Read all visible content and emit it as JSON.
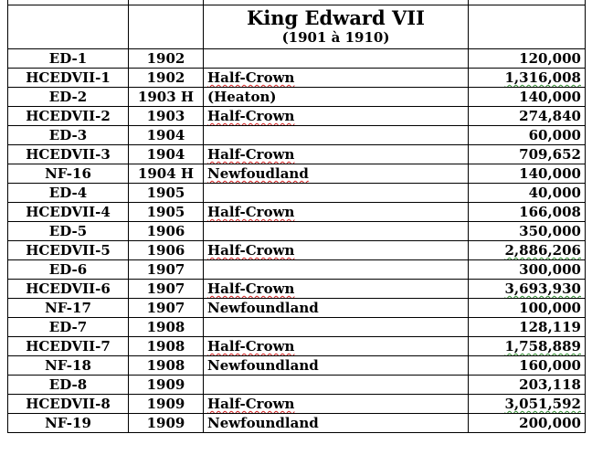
{
  "header": {
    "title": "King Edward VII",
    "subtitle": "(1901 à 1910)"
  },
  "rows": [
    {
      "code": "ED-1",
      "year": "1902",
      "desc": "",
      "qty": "120,000",
      "desc_mark": "",
      "qty_mark": ""
    },
    {
      "code": "HCEDVII-1",
      "year": "1902",
      "desc": "Half-Crown",
      "qty": "1,316,008",
      "desc_mark": "red",
      "qty_mark": "green"
    },
    {
      "code": "ED-2",
      "year": "1903 H",
      "desc": "(Heaton)",
      "qty": "140,000",
      "desc_mark": "",
      "qty_mark": ""
    },
    {
      "code": "HCEDVII-2",
      "year": "1903",
      "desc": "Half-Crown",
      "qty": "274,840",
      "desc_mark": "red",
      "qty_mark": ""
    },
    {
      "code": "ED-3",
      "year": "1904",
      "desc": "",
      "qty": "60,000",
      "desc_mark": "",
      "qty_mark": ""
    },
    {
      "code": "HCEDVII-3",
      "year": "1904",
      "desc": "Half-Crown",
      "qty": "709,652",
      "desc_mark": "red",
      "qty_mark": ""
    },
    {
      "code": "NF-16",
      "year": "1904 H",
      "desc": "Newfoudland",
      "qty": "140,000",
      "desc_mark": "red",
      "qty_mark": ""
    },
    {
      "code": "ED-4",
      "year": "1905",
      "desc": "",
      "qty": "40,000",
      "desc_mark": "",
      "qty_mark": ""
    },
    {
      "code": "HCEDVII-4",
      "year": "1905",
      "desc": "Half-Crown",
      "qty": "166,008",
      "desc_mark": "red",
      "qty_mark": ""
    },
    {
      "code": "ED-5",
      "year": "1906",
      "desc": "",
      "qty": "350,000",
      "desc_mark": "",
      "qty_mark": ""
    },
    {
      "code": "HCEDVII-5",
      "year": "1906",
      "desc": "Half-Crown",
      "qty": "2,886,206",
      "desc_mark": "red",
      "qty_mark": "green"
    },
    {
      "code": "ED-6",
      "year": "1907",
      "desc": "",
      "qty": "300,000",
      "desc_mark": "",
      "qty_mark": ""
    },
    {
      "code": "HCEDVII-6",
      "year": "1907",
      "desc": "Half-Crown",
      "qty": "3,693,930",
      "desc_mark": "red",
      "qty_mark": "green"
    },
    {
      "code": "NF-17",
      "year": "1907",
      "desc": "Newfoundland",
      "qty": "100,000",
      "desc_mark": "",
      "qty_mark": ""
    },
    {
      "code": "ED-7",
      "year": "1908",
      "desc": "",
      "qty": "128,119",
      "desc_mark": "",
      "qty_mark": ""
    },
    {
      "code": "HCEDVII-7",
      "year": "1908",
      "desc": "Half-Crown",
      "qty": "1,758,889",
      "desc_mark": "red",
      "qty_mark": "green"
    },
    {
      "code": "NF-18",
      "year": "1908",
      "desc": "Newfoundland",
      "qty": "160,000",
      "desc_mark": "",
      "qty_mark": ""
    },
    {
      "code": "ED-8",
      "year": "1909",
      "desc": "",
      "qty": "203,118",
      "desc_mark": "",
      "qty_mark": ""
    },
    {
      "code": "HCEDVII-8",
      "year": "1909",
      "desc": "Half-Crown",
      "qty": "3,051,592",
      "desc_mark": "red",
      "qty_mark": "green"
    },
    {
      "code": "NF-19",
      "year": "1909",
      "desc": "Newfoundland",
      "qty": "200,000",
      "desc_mark": "",
      "qty_mark": ""
    }
  ],
  "colors": {
    "spellcheck_underline": "#d22020",
    "grammar_underline": "#2e8b2e",
    "border": "#000000"
  }
}
